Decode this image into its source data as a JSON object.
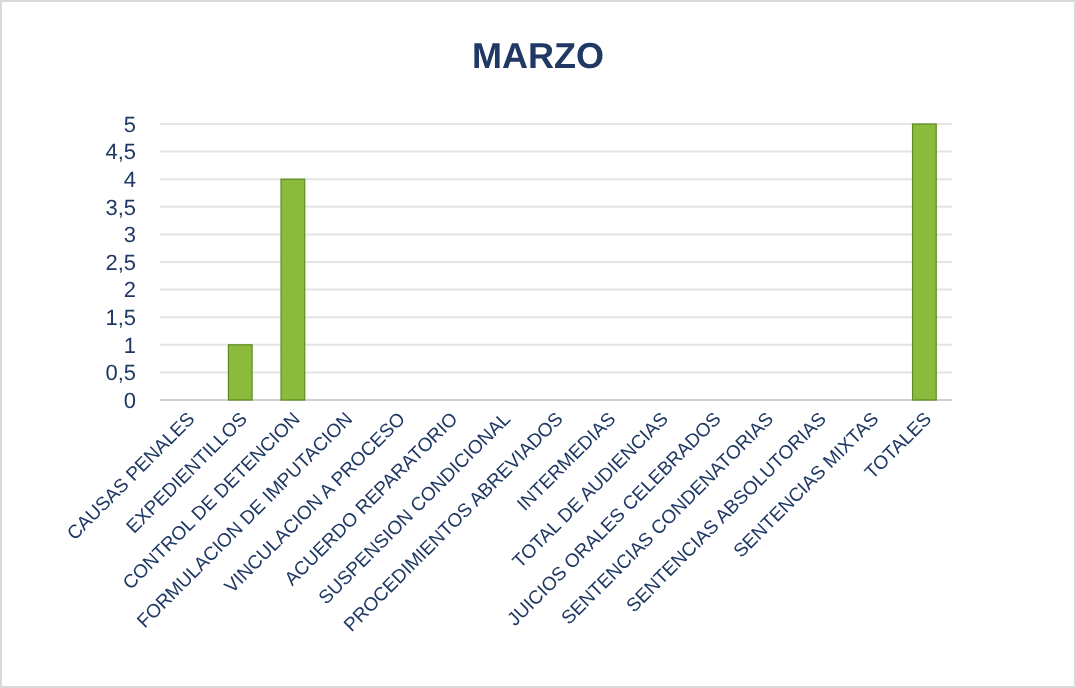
{
  "chart_data": {
    "type": "bar",
    "title": "MARZO",
    "categories": [
      "CAUSAS PENALES",
      "EXPEDIENTILLOS",
      "CONTROL DE DETENCION",
      "FORMULACION DE IMPUTACION",
      "VINCULACION A PROCESO",
      "ACUERDO REPARATORIO",
      "SUSPENSION CONDICIONAL",
      "PROCEDIMIENTOS ABREVIADOS",
      "INTERMEDIAS",
      "TOTAL DE AUDIENCIAS",
      "JUICIOS ORALES CELEBRADOS",
      "SENTENCIAS CONDENATORIAS",
      "SENTENCIAS ABSOLUTORIAS",
      "SENTENCIAS MIXTAS",
      "TOTALES"
    ],
    "values": [
      0,
      1,
      4,
      0,
      0,
      0,
      0,
      0,
      0,
      0,
      0,
      0,
      0,
      0,
      5
    ],
    "color": "#8cba3c",
    "ylim": [
      0,
      5
    ],
    "yticks": [
      0,
      {
        "value": 0.5,
        "label": "0,5"
      },
      1,
      {
        "value": 1.5,
        "label": "1,5"
      },
      2,
      {
        "value": 2.5,
        "label": "2,5"
      },
      3,
      {
        "value": 3.5,
        "label": "3,5"
      },
      4,
      {
        "value": 4.5,
        "label": "4,5"
      },
      5
    ],
    "grid": true
  }
}
